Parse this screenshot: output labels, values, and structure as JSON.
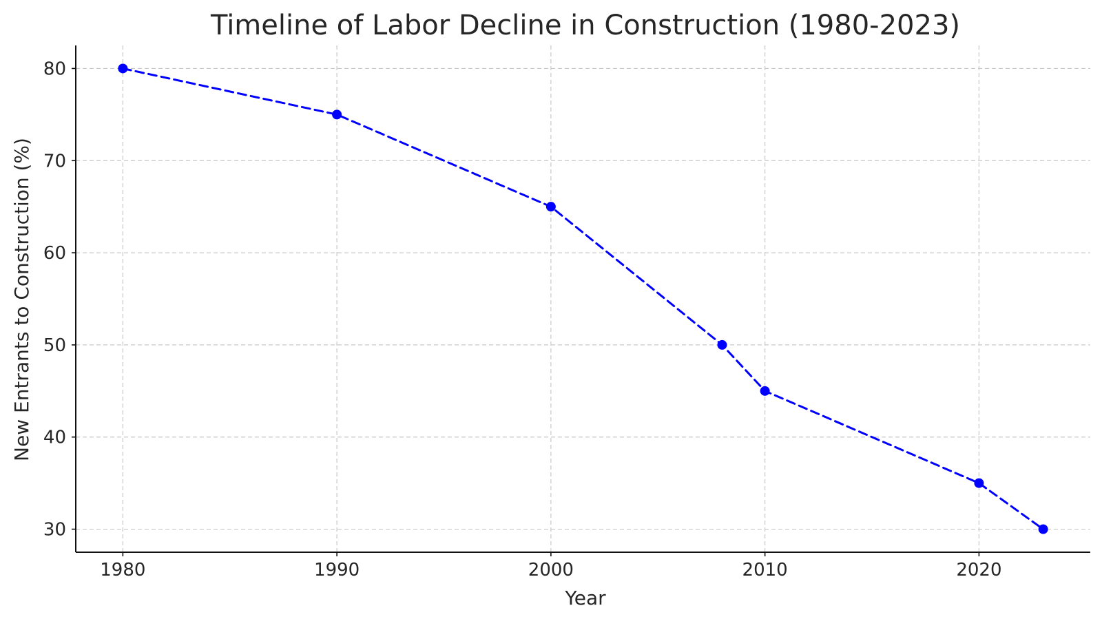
{
  "chart_data": {
    "type": "line",
    "title": "Timeline of Labor Decline in Construction (1980-2023)",
    "xlabel": "Year",
    "ylabel": "New Entrants to Construction (%)",
    "x": [
      1980,
      1990,
      2000,
      2008,
      2010,
      2020,
      2023
    ],
    "series": [
      {
        "values": [
          80,
          75,
          65,
          50,
          45,
          35,
          30
        ],
        "color": "#0000ff",
        "line_style": "dashed",
        "marker": "circle"
      }
    ],
    "xticks": [
      1980,
      1990,
      2000,
      2010,
      2020
    ],
    "yticks": [
      30,
      40,
      50,
      60,
      70,
      80
    ],
    "xlim": [
      1977.8,
      2025.2
    ],
    "ylim": [
      27.5,
      82.5
    ],
    "grid": true,
    "legend": "none"
  }
}
